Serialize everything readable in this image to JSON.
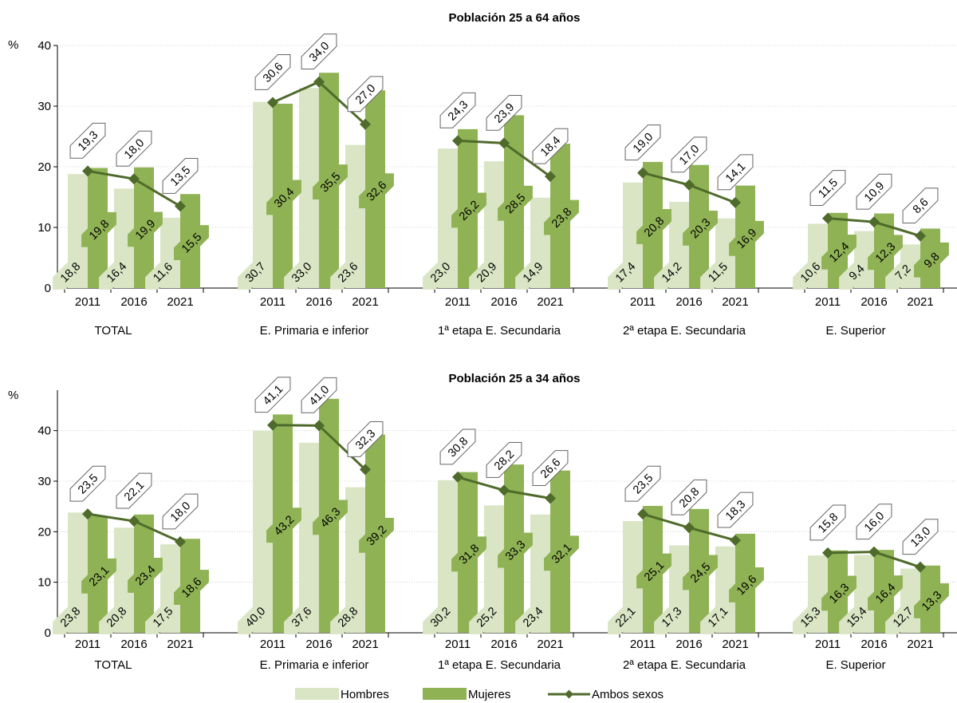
{
  "chart_data": [
    {
      "type": "bar",
      "title": "Población 25 a 64 años",
      "ylabel": "%",
      "ylim": [
        0,
        40
      ],
      "yticks": [
        0,
        10,
        20,
        30,
        40
      ],
      "groups": [
        "TOTAL",
        "E. Primaria e inferior",
        "1ª etapa E. Secundaria",
        "2ª etapa E. Secundaria",
        "E. Superior"
      ],
      "years": [
        "2011",
        "2016",
        "2021"
      ],
      "series": [
        {
          "name": "Hombres",
          "values": [
            [
              18.8,
              16.4,
              11.6
            ],
            [
              30.7,
              33.0,
              23.6
            ],
            [
              23.0,
              20.9,
              14.9
            ],
            [
              17.4,
              14.2,
              11.5
            ],
            [
              10.6,
              9.4,
              7.2
            ]
          ],
          "labels": [
            [
              "18,8",
              "16,4",
              "11,6"
            ],
            [
              "30,7",
              "33,0",
              "23,6"
            ],
            [
              "23,0",
              "20,9",
              "14,9"
            ],
            [
              "17,4",
              "14,2",
              "11,5"
            ],
            [
              "10,6",
              "9,4",
              "7,2"
            ]
          ]
        },
        {
          "name": "Mujeres",
          "values": [
            [
              19.8,
              19.9,
              15.5
            ],
            [
              30.4,
              35.5,
              32.6
            ],
            [
              26.2,
              28.5,
              23.8
            ],
            [
              20.8,
              20.3,
              16.9
            ],
            [
              12.4,
              12.3,
              9.8
            ]
          ],
          "labels": [
            [
              "19,8",
              "19,9",
              "15,5"
            ],
            [
              "30,4",
              "35,5",
              "32,6"
            ],
            [
              "26,2",
              "28,5",
              "23,8"
            ],
            [
              "20,8",
              "20,3",
              "16,9"
            ],
            [
              "12,4",
              "12,3",
              "9,8"
            ]
          ]
        },
        {
          "name": "Ambos sexos",
          "values": [
            [
              19.3,
              18.0,
              13.5
            ],
            [
              30.6,
              34.0,
              27.0
            ],
            [
              24.3,
              23.9,
              18.4
            ],
            [
              19.0,
              17.0,
              14.1
            ],
            [
              11.5,
              10.9,
              8.6
            ]
          ],
          "labels": [
            [
              "19,3",
              "18,0",
              "13,5"
            ],
            [
              "30,6",
              "34,0",
              "27,0"
            ],
            [
              "24,3",
              "23,9",
              "18,4"
            ],
            [
              "19,0",
              "17,0",
              "14,1"
            ],
            [
              "11,5",
              "10,9",
              "8,6"
            ]
          ]
        }
      ]
    },
    {
      "type": "bar",
      "title": "Población 25 a 34 años",
      "ylabel": "%",
      "ylim": [
        0,
        48
      ],
      "yticks": [
        0,
        10,
        20,
        30,
        40
      ],
      "groups": [
        "TOTAL",
        "E. Primaria e inferior",
        "1ª etapa E. Secundaria",
        "2ª etapa E. Secundaria",
        "E. Superior"
      ],
      "years": [
        "2011",
        "2016",
        "2021"
      ],
      "series": [
        {
          "name": "Hombres",
          "values": [
            [
              23.8,
              20.8,
              17.5
            ],
            [
              40.0,
              37.6,
              28.8
            ],
            [
              30.2,
              25.2,
              23.4
            ],
            [
              22.1,
              17.3,
              17.1
            ],
            [
              15.3,
              15.4,
              12.7
            ]
          ],
          "labels": [
            [
              "23,8",
              "20,8",
              "17,5"
            ],
            [
              "40,0",
              "37,6",
              "28,8"
            ],
            [
              "30,2",
              "25,2",
              "23,4"
            ],
            [
              "22,1",
              "17,3",
              "17,1"
            ],
            [
              "15,3",
              "15,4",
              "12,7"
            ]
          ]
        },
        {
          "name": "Mujeres",
          "values": [
            [
              23.1,
              23.4,
              18.6
            ],
            [
              43.2,
              46.3,
              39.2
            ],
            [
              31.8,
              33.3,
              32.1
            ],
            [
              25.1,
              24.5,
              19.6
            ],
            [
              16.3,
              16.4,
              13.3
            ]
          ],
          "labels": [
            [
              "23,1",
              "23,4",
              "18,6"
            ],
            [
              "43,2",
              "46,3",
              "39,2"
            ],
            [
              "31,8",
              "33,3",
              "32,1"
            ],
            [
              "25,1",
              "24,5",
              "19,6"
            ],
            [
              "16,3",
              "16,4",
              "13,3"
            ]
          ]
        },
        {
          "name": "Ambos sexos",
          "values": [
            [
              23.5,
              22.1,
              18.0
            ],
            [
              41.1,
              41.0,
              32.3
            ],
            [
              30.8,
              28.2,
              26.6
            ],
            [
              23.5,
              20.8,
              18.3
            ],
            [
              15.8,
              16.0,
              13.0
            ]
          ],
          "labels": [
            [
              "23,5",
              "22,1",
              "18,0"
            ],
            [
              "41,1",
              "41,0",
              "32,3"
            ],
            [
              "30,8",
              "28,2",
              "26,6"
            ],
            [
              "23,5",
              "20,8",
              "18,3"
            ],
            [
              "15,8",
              "16,0",
              "13,0"
            ]
          ]
        }
      ]
    }
  ],
  "legend": {
    "position": "bottom",
    "items": [
      {
        "name": "Hombres",
        "kind": "bar",
        "color": "#d9e5c4"
      },
      {
        "name": "Mujeres",
        "kind": "bar",
        "color": "#8fb254"
      },
      {
        "name": "Ambos sexos",
        "kind": "line-marker",
        "color": "#4f6b2b"
      }
    ]
  },
  "colors": {
    "hombres": "#d9e5c4",
    "mujeres": "#8fb254",
    "ambos": "#4f6b2b",
    "label_box_stroke": "#666666",
    "grid": "#c8c8c8"
  }
}
